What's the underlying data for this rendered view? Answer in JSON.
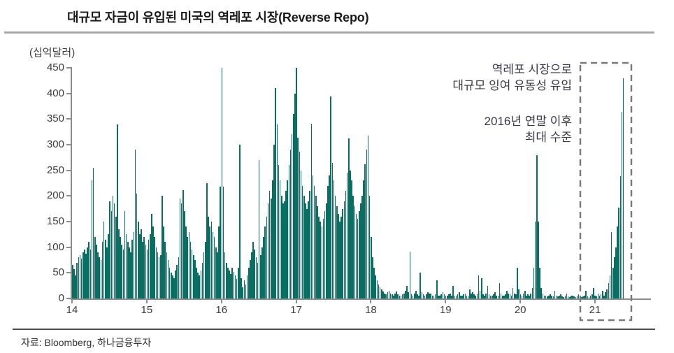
{
  "chart_data": {
    "type": "bar",
    "title": "대규모 자금이 유입된 미국의 역레포 시장(Reverse Repo)",
    "unit_label": "(십억달러)",
    "xlabel": "",
    "ylabel": "(십억달러)",
    "ylim": [
      0,
      450
    ],
    "y_ticks": [
      0,
      50,
      100,
      150,
      200,
      250,
      300,
      350,
      400,
      450
    ],
    "x_tick_labels": [
      "14",
      "15",
      "16",
      "17",
      "18",
      "19",
      "20",
      "21"
    ],
    "start_year": 2014,
    "points_per_year": 50,
    "grid": "off",
    "legend": "none",
    "highlight_box_year_range": [
      20.83,
      21.55
    ],
    "values": [
      65,
      58,
      45,
      70,
      80,
      85,
      78,
      90,
      95,
      88,
      100,
      110,
      95,
      230,
      255,
      120,
      105,
      90,
      80,
      75,
      110,
      150,
      115,
      100,
      125,
      190,
      170,
      200,
      185,
      160,
      340,
      135,
      120,
      105,
      95,
      170,
      125,
      110,
      100,
      90,
      115,
      130,
      290,
      205,
      150,
      125,
      135,
      110,
      120,
      105,
      95,
      115,
      125,
      165,
      140,
      120,
      100,
      90,
      80,
      85,
      200,
      140,
      110,
      90,
      75,
      60,
      50,
      45,
      40,
      55,
      65,
      80,
      195,
      185,
      212,
      170,
      140,
      120,
      130,
      110,
      95,
      85,
      75,
      60,
      50,
      45,
      55,
      70,
      90,
      110,
      225,
      160,
      140,
      150,
      130,
      120,
      100,
      90,
      140,
      218,
      450,
      218,
      90,
      70,
      60,
      55,
      48,
      60,
      52,
      45,
      38,
      60,
      300,
      40,
      22,
      35,
      28,
      45,
      60,
      75,
      90,
      110,
      95,
      80,
      70,
      270,
      85,
      100,
      120,
      140,
      160,
      185,
      210,
      195,
      230,
      300,
      410,
      340,
      260,
      230,
      200,
      185,
      190,
      210,
      230,
      260,
      290,
      320,
      360,
      400,
      450,
      314,
      287,
      250,
      220,
      200,
      185,
      175,
      190,
      210,
      341,
      240,
      219,
      200,
      180,
      160,
      150,
      140,
      155,
      170,
      185,
      220,
      240,
      394,
      264,
      230,
      200,
      180,
      165,
      150,
      160,
      175,
      190,
      210,
      245,
      312,
      250,
      230,
      200,
      180,
      165,
      155,
      170,
      185,
      200,
      230,
      262,
      290,
      318,
      200,
      120,
      80,
      60,
      45,
      35,
      28,
      22,
      18,
      14,
      10,
      8,
      12,
      15,
      10,
      8,
      6,
      10,
      14,
      8,
      6,
      5,
      8,
      10,
      15,
      25,
      12,
      91,
      8,
      6,
      10,
      15,
      8,
      6,
      50,
      12,
      8,
      5,
      8,
      12,
      10,
      10,
      6,
      5,
      8,
      35,
      6,
      5,
      8,
      12,
      8,
      6,
      5,
      8,
      10,
      6,
      25,
      5,
      6,
      8,
      12,
      6,
      5,
      8,
      10,
      6,
      5,
      18,
      10,
      12,
      8,
      6,
      10,
      45,
      15,
      40,
      8,
      6,
      10,
      25,
      8,
      6,
      5,
      8,
      12,
      6,
      5,
      30,
      10,
      6,
      5,
      8,
      15,
      10,
      8,
      6,
      20,
      10,
      8,
      60,
      18,
      8,
      6,
      10,
      15,
      5,
      8,
      6,
      10,
      20,
      60,
      150,
      280,
      150,
      60,
      20,
      10,
      6,
      5,
      4,
      6,
      8,
      5,
      4,
      15,
      6,
      4,
      5,
      8,
      4,
      3,
      5,
      10,
      4,
      3,
      5,
      6,
      4,
      3,
      5,
      8,
      4,
      3,
      4,
      6,
      15,
      4,
      3,
      5,
      8,
      20,
      6,
      4,
      10,
      5,
      8,
      15,
      6,
      12,
      18,
      30,
      45,
      130,
      60,
      80,
      100,
      140,
      177,
      239,
      364,
      430
    ]
  },
  "annotations": {
    "inflow_line1": "역레포 시장으로",
    "inflow_line2": "대규모 잉여 유동성 유입",
    "level_line1": "2016년 연말 이후",
    "level_line2": "최대 수준"
  },
  "source": "자료: Bloomberg, 하나금융투자",
  "colors": {
    "bar": "#0a6e62",
    "axis": "#8c8c8c",
    "dash_box": "#7a7a7a",
    "title_rule": "#a8a8a8",
    "bottom_rule": "#4d4d4d",
    "annotation_text": "#3a3a46"
  }
}
